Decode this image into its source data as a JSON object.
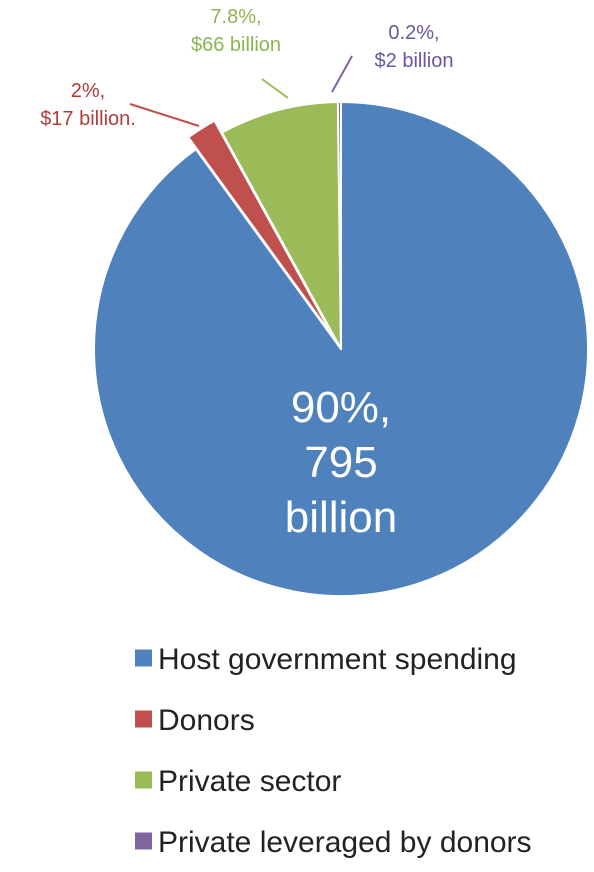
{
  "chart_data": {
    "type": "pie",
    "start_angle_deg": 0,
    "direction": "clockwise",
    "legend_position": "bottom",
    "slices": [
      {
        "name": "Host government spending",
        "value": 90,
        "label_lines": [
          "90%,",
          "795",
          "billion"
        ],
        "color": "#4f81bd",
        "label_color": "#ffffff",
        "exploded": false
      },
      {
        "name": "Donors",
        "value": 2,
        "label_lines": [
          "2%,",
          "$17 billion."
        ],
        "color": "#c0504d",
        "label_color": "#b23c3a",
        "exploded": true
      },
      {
        "name": "Private sector",
        "value": 7.8,
        "label_lines": [
          "7.8%,",
          "$66 billion"
        ],
        "color": "#9bbb59",
        "label_color": "#8db450",
        "exploded": false
      },
      {
        "name": "Private leveraged by donors",
        "value": 0.2,
        "label_lines": [
          "0.2%,",
          "$2 billion"
        ],
        "color": "#8064a2",
        "label_color": "#6b55a0",
        "exploded": false
      }
    ]
  }
}
